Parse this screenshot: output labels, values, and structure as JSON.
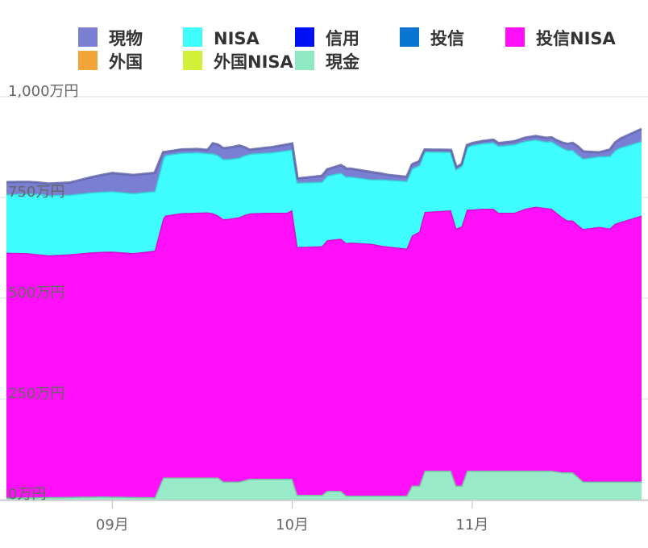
{
  "chart_data": {
    "type": "area",
    "stacked": true,
    "x_unit": "day",
    "x": [
      0,
      1,
      2,
      3,
      4,
      5,
      6,
      7,
      8,
      9,
      10,
      11,
      12,
      13,
      14,
      15,
      16,
      17,
      18,
      19,
      20,
      21,
      22,
      23,
      24,
      25,
      26,
      27,
      28,
      29,
      30,
      31,
      32,
      33,
      34,
      35,
      36,
      37,
      38,
      39,
      40,
      41,
      42,
      43,
      44,
      45,
      46,
      47,
      48,
      49,
      50,
      51,
      52,
      53,
      54,
      55,
      56,
      57,
      58,
      59,
      60,
      61,
      62,
      63,
      64,
      65,
      66,
      67,
      68,
      69,
      70,
      71,
      72,
      73,
      74,
      75,
      76,
      77,
      78,
      79,
      80,
      81,
      82,
      83,
      84,
      85,
      86,
      87,
      88,
      89,
      90,
      91,
      92,
      93,
      94,
      95,
      96,
      97,
      98,
      99,
      100,
      101,
      102,
      103,
      104,
      105,
      106,
      107,
      108,
      109,
      110,
      111,
      112,
      113,
      114,
      115,
      116,
      117,
      118,
      119,
      120,
      121,
      122,
      123,
      124,
      125,
      126,
      127,
      128,
      129,
      130,
      131,
      132,
      133,
      134,
      135,
      136,
      137,
      138,
      139,
      140,
      141,
      142,
      143,
      144,
      145,
      146,
      147,
      148,
      149,
      150,
      151,
      152,
      153,
      154,
      155,
      156,
      157,
      158,
      159,
      160,
      161,
      162,
      163,
      164,
      165,
      166,
      167,
      168,
      169,
      170,
      171,
      172,
      173,
      174,
      175,
      176,
      177,
      178,
      179,
      180,
      181,
      182,
      183,
      184,
      185,
      186,
      187,
      188,
      189,
      190,
      191,
      192,
      193,
      194,
      195,
      196,
      197,
      198,
      199,
      200,
      201,
      202,
      203,
      204,
      205,
      206,
      207,
      208,
      209,
      210,
      211,
      212,
      213,
      214,
      215,
      216,
      217,
      218,
      219,
      220,
      221,
      222,
      223,
      224,
      225,
      226,
      227,
      228,
      229,
      230,
      231,
      232,
      233,
      234,
      235,
      236,
      237,
      238,
      239,
      240,
      241,
      242,
      243,
      244,
      245,
      246,
      247,
      248,
      249,
      250,
      251,
      252,
      253,
      254,
      255,
      256,
      257,
      258,
      259,
      260,
      261,
      262,
      263,
      264,
      265,
      266,
      267,
      268,
      269,
      270,
      271,
      272,
      273,
      274,
      275,
      276,
      277,
      278,
      279,
      280,
      281,
      282,
      283,
      284,
      285,
      286,
      287,
      288,
      289,
      290,
      291,
      292,
      293,
      294,
      295,
      296,
      297,
      298,
      299,
      300,
      301,
      302,
      303,
      304,
      305,
      306,
      307,
      308,
      309,
      310,
      311,
      312,
      313,
      314,
      315,
      316,
      317,
      318,
      319,
      320,
      321,
      322,
      323,
      324,
      325,
      326,
      327,
      328,
      329,
      330,
      331,
      332,
      333,
      334,
      335,
      336,
      337,
      338,
      339,
      340,
      341,
      342,
      343,
      344,
      345,
      346,
      347,
      348,
      349,
      350,
      351,
      352,
      353,
      354,
      355,
      356,
      357,
      358,
      359,
      360,
      361,
      362,
      363,
      364,
      365,
      366,
      367,
      368,
      369,
      370,
      371,
      372,
      373,
      374,
      375,
      376,
      377,
      378,
      379,
      380,
      381,
      382,
      383,
      384,
      385,
      386,
      387,
      388,
      389,
      390,
      391,
      392,
      393,
      394,
      395,
      396,
      397,
      398,
      399,
      400,
      401,
      402,
      403,
      404,
      405,
      406,
      407,
      408,
      409,
      410,
      411,
      412,
      413,
      414,
      415,
      416,
      417,
      418,
      419,
      420,
      421,
      422,
      423,
      424,
      425,
      426,
      427,
      428,
      429,
      430,
      431,
      432,
      433,
      434,
      435,
      436,
      437,
      438,
      439,
      440,
      441,
      442,
      443,
      444,
      445,
      446,
      447,
      448,
      449,
      450,
      451,
      452,
      453,
      454,
      455,
      456,
      457,
      458,
      459,
      460,
      461,
      462,
      463,
      464,
      465,
      466,
      467,
      468,
      469,
      470,
      471,
      472,
      473,
      474,
      475,
      476,
      477,
      478,
      479,
      480,
      481,
      482,
      483,
      484,
      485,
      486,
      487,
      488,
      489,
      490,
      491,
      492,
      493,
      494,
      495,
      496,
      497,
      498,
      499,
      500,
      501,
      502,
      503,
      504,
      505,
      506,
      507,
      508,
      509,
      510,
      511,
      512,
      513,
      514,
      515,
      516,
      517,
      518,
      519,
      520,
      521,
      522,
      523,
      524,
      525,
      526,
      527,
      528,
      529,
      530,
      531,
      532,
      533,
      534,
      535,
      536,
      537,
      538,
      539,
      540,
      541,
      542,
      543,
      544,
      545,
      546,
      547,
      548,
      549,
      550,
      551,
      552,
      553,
      554,
      555,
      556,
      557,
      558,
      559,
      560,
      561,
      562,
      563,
      564,
      565,
      566,
      567,
      568,
      569,
      570,
      571,
      572,
      573,
      574,
      575,
      576,
      577,
      578,
      579,
      580,
      581,
      582,
      583,
      584,
      585,
      586,
      587,
      588,
      589,
      590,
      591,
      592,
      593,
      594,
      595,
      596,
      597,
      598,
      599,
      600
    ],
    "x_range": [
      0,
      600
    ],
    "x_ticks": [
      {
        "label": "09月",
        "x": 100
      },
      {
        "label": "10月",
        "x": 270
      },
      {
        "label": "11月",
        "x": 440
      }
    ],
    "y_unit": "万円",
    "y_range": [
      0,
      1000
    ],
    "y_ticks": [
      {
        "label": "0万円",
        "value": 0
      },
      {
        "label": "250万円",
        "value": 250
      },
      {
        "label": "500万円",
        "value": 500
      },
      {
        "label": "750万円",
        "value": 750
      },
      {
        "label": "1,000万円",
        "value": 1000
      }
    ],
    "grid": true,
    "legend_position": "top",
    "legend": [
      {
        "name": "現物",
        "color": "#7b7fd4"
      },
      {
        "name": "NISA",
        "color": "#3ffcff"
      },
      {
        "name": "信用",
        "color": "#0010f5"
      },
      {
        "name": "投信",
        "color": "#0a74d1"
      },
      {
        "name": "投信NISA",
        "color": "#ff10f8"
      },
      {
        "name": "外国",
        "color": "#f4a53a"
      },
      {
        "name": "外国NISA",
        "color": "#d2ef3a"
      },
      {
        "name": "現金",
        "color": "#8ee8c2"
      }
    ],
    "stack_order_bottom_to_top": [
      "現金",
      "投信NISA",
      "NISA",
      "現物"
    ],
    "series_points": {
      "現金": [
        [
          0,
          5
        ],
        [
          90,
          8
        ],
        [
          140,
          6
        ],
        [
          148,
          55
        ],
        [
          200,
          55
        ],
        [
          205,
          45
        ],
        [
          220,
          45
        ],
        [
          230,
          52
        ],
        [
          270,
          52
        ],
        [
          275,
          12
        ],
        [
          298,
          12
        ],
        [
          303,
          22
        ],
        [
          316,
          22
        ],
        [
          321,
          10
        ],
        [
          378,
          10
        ],
        [
          383,
          35
        ],
        [
          390,
          35
        ],
        [
          395,
          72
        ],
        [
          420,
          72
        ],
        [
          425,
          35
        ],
        [
          430,
          35
        ],
        [
          435,
          72
        ],
        [
          515,
          72
        ],
        [
          525,
          68
        ],
        [
          535,
          68
        ],
        [
          545,
          45
        ],
        [
          600,
          45
        ]
      ],
      "投信NISA": [
        [
          0,
          608
        ],
        [
          20,
          606
        ],
        [
          40,
          600
        ],
        [
          60,
          602
        ],
        [
          80,
          606
        ],
        [
          100,
          608
        ],
        [
          120,
          605
        ],
        [
          140,
          612
        ],
        [
          150,
          650
        ],
        [
          165,
          656
        ],
        [
          190,
          658
        ],
        [
          195,
          656
        ],
        [
          200,
          650
        ],
        [
          210,
          652
        ],
        [
          225,
          658
        ],
        [
          245,
          660
        ],
        [
          265,
          660
        ],
        [
          270,
          667
        ],
        [
          275,
          615
        ],
        [
          298,
          617
        ],
        [
          303,
          622
        ],
        [
          325,
          628
        ],
        [
          345,
          625
        ],
        [
          355,
          620
        ],
        [
          378,
          613
        ],
        [
          390,
          630
        ],
        [
          395,
          642
        ],
        [
          420,
          646
        ],
        [
          425,
          638
        ],
        [
          435,
          648
        ],
        [
          440,
          648
        ],
        [
          450,
          650
        ],
        [
          460,
          650
        ],
        [
          465,
          640
        ],
        [
          480,
          640
        ],
        [
          490,
          650
        ],
        [
          500,
          655
        ],
        [
          515,
          650
        ],
        [
          530,
          625
        ],
        [
          540,
          625
        ],
        [
          560,
          632
        ],
        [
          570,
          628
        ],
        [
          575,
          640
        ],
        [
          600,
          660
        ]
      ],
      "NISA": [
        [
          0,
          145
        ],
        [
          30,
          150
        ],
        [
          60,
          148
        ],
        [
          100,
          150
        ],
        [
          140,
          148
        ],
        [
          150,
          150
        ],
        [
          180,
          150
        ],
        [
          190,
          147
        ],
        [
          200,
          150
        ],
        [
          215,
          148
        ],
        [
          230,
          148
        ],
        [
          250,
          150
        ],
        [
          265,
          155
        ],
        [
          270,
          150
        ],
        [
          275,
          160
        ],
        [
          298,
          160
        ],
        [
          303,
          160
        ],
        [
          320,
          165
        ],
        [
          345,
          160
        ],
        [
          355,
          165
        ],
        [
          378,
          168
        ],
        [
          390,
          165
        ],
        [
          395,
          150
        ],
        [
          420,
          145
        ],
        [
          430,
          150
        ],
        [
          440,
          160
        ],
        [
          460,
          165
        ],
        [
          480,
          170
        ],
        [
          510,
          165
        ],
        [
          530,
          175
        ],
        [
          560,
          175
        ],
        [
          580,
          185
        ],
        [
          600,
          185
        ]
      ],
      "現物": [
        [
          0,
          30
        ],
        [
          30,
          28
        ],
        [
          60,
          30
        ],
        [
          100,
          45
        ],
        [
          140,
          45
        ],
        [
          150,
          8
        ],
        [
          190,
          8
        ],
        [
          195,
          25
        ],
        [
          220,
          30
        ],
        [
          230,
          10
        ],
        [
          270,
          15
        ],
        [
          275,
          10
        ],
        [
          300,
          15
        ],
        [
          320,
          20
        ],
        [
          345,
          18
        ],
        [
          360,
          12
        ],
        [
          380,
          10
        ],
        [
          390,
          10
        ],
        [
          395,
          5
        ],
        [
          420,
          5
        ],
        [
          440,
          5
        ],
        [
          520,
          10
        ],
        [
          540,
          20
        ],
        [
          560,
          10
        ],
        [
          580,
          22
        ],
        [
          600,
          30
        ]
      ]
    }
  }
}
